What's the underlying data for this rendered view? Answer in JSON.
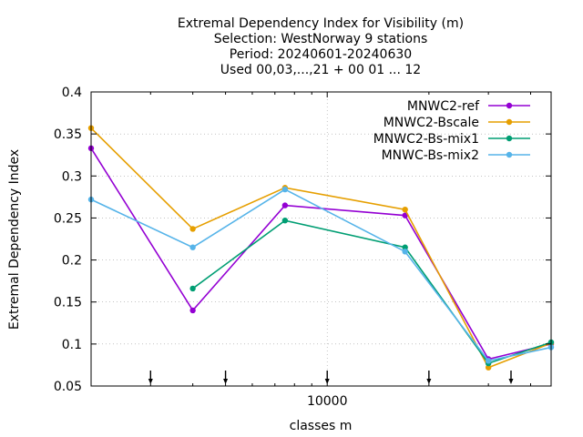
{
  "chart_data": {
    "type": "line",
    "title_lines": [
      "Extremal Dependency Index  for Visibility (m)",
      "Selection: WestNorway      9 stations",
      "Period: 20240601-20240630",
      "Used 00,03,...,21 + 00 01 ... 12"
    ],
    "xlabel": "classes m",
    "ylabel": "Extremal Dependency Index",
    "x_scale": "log",
    "x_tick_labels": [
      {
        "value": 10000,
        "label": "10000"
      }
    ],
    "xlim": [
      2000,
      46000
    ],
    "ylim": [
      0.05,
      0.4
    ],
    "y_ticks": [
      {
        "value": 0.05,
        "label": "0.05"
      },
      {
        "value": 0.1,
        "label": "0.1"
      },
      {
        "value": 0.15,
        "label": "0.15"
      },
      {
        "value": 0.2,
        "label": "0.2"
      },
      {
        "value": 0.25,
        "label": "0.25"
      },
      {
        "value": 0.3,
        "label": "0.3"
      },
      {
        "value": 0.35,
        "label": "0.35"
      },
      {
        "value": 0.4,
        "label": "0.4"
      }
    ],
    "class_markers": [
      3000,
      5000,
      10000,
      20000,
      35000
    ],
    "grid": true,
    "legend_position": "top-right",
    "series": [
      {
        "name": "MNWC2-ref",
        "color": "#9400d3",
        "points": [
          [
            2000,
            0.333
          ],
          [
            4000,
            0.14
          ],
          [
            7500,
            0.265
          ],
          [
            17000,
            0.253
          ],
          [
            30000,
            0.082
          ],
          [
            46000,
            0.1
          ]
        ]
      },
      {
        "name": "MNWC2-Bscale",
        "color": "#e69f00",
        "points": [
          [
            2000,
            0.357
          ],
          [
            4000,
            0.237
          ],
          [
            7500,
            0.286
          ],
          [
            17000,
            0.26
          ],
          [
            30000,
            0.072
          ],
          [
            46000,
            0.101
          ]
        ]
      },
      {
        "name": "MNWC2-Bs-mix1",
        "color": "#009e73",
        "points": [
          [
            4000,
            0.166
          ],
          [
            7500,
            0.247
          ],
          [
            17000,
            0.215
          ],
          [
            30000,
            0.077
          ],
          [
            46000,
            0.102
          ]
        ]
      },
      {
        "name": "MNWC-Bs-mix2",
        "color": "#56b4e9",
        "points": [
          [
            2000,
            0.272
          ],
          [
            4000,
            0.215
          ],
          [
            7500,
            0.284
          ],
          [
            17000,
            0.21
          ],
          [
            30000,
            0.08
          ],
          [
            46000,
            0.096
          ]
        ]
      }
    ]
  }
}
